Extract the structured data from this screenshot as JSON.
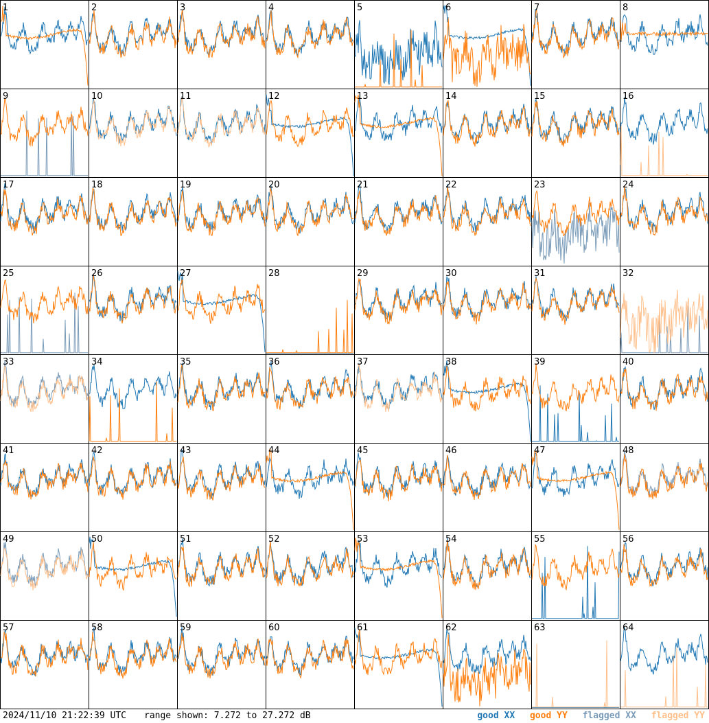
{
  "footer": {
    "timestamp": "2024/11/10 21:22:39 UTC",
    "range_text": "range shown: 7.272 to 27.272 dB"
  },
  "legend": {
    "good_xx": {
      "label": "good XX",
      "color": "#1f77b4"
    },
    "good_yy": {
      "label": "good YY",
      "color": "#ff7f0e"
    },
    "flagged_xx": {
      "label": "flagged XX",
      "color": "#7a9bb8"
    },
    "flagged_yy": {
      "label": "flagged YY",
      "color": "#ffbf8a"
    }
  },
  "chart_data": {
    "type": "line",
    "layout": "8x8 grid of small multiples",
    "ylim": [
      7.272,
      27.272
    ],
    "yunit": "dB",
    "panels": [
      {
        "id": "1",
        "xx": "good",
        "yy": "good",
        "yy_style": "rolloff"
      },
      {
        "id": "2",
        "xx": "good",
        "yy": "good",
        "yy_style": "normal"
      },
      {
        "id": "3",
        "xx": "good",
        "yy": "good",
        "yy_style": "normal"
      },
      {
        "id": "4",
        "xx": "good",
        "yy": "good",
        "yy_style": "normal"
      },
      {
        "id": "5",
        "xx": "good",
        "yy": "good",
        "xx_style": "noisy",
        "yy_style": "spikes"
      },
      {
        "id": "6",
        "xx": "good",
        "yy": "good",
        "xx_style": "rolloff",
        "yy_style": "noisy"
      },
      {
        "id": "7",
        "xx": "good",
        "yy": "good",
        "yy_style": "normal"
      },
      {
        "id": "8",
        "xx": "good",
        "yy": "good",
        "yy_style": "flat"
      },
      {
        "id": "9",
        "xx": "flagged",
        "yy": "good",
        "xx_style": "spikes"
      },
      {
        "id": "10",
        "xx": "good",
        "yy": "flagged"
      },
      {
        "id": "11",
        "xx": "good",
        "yy": "flagged"
      },
      {
        "id": "12",
        "xx": "good",
        "yy": "good",
        "xx_style": "rolloff"
      },
      {
        "id": "13",
        "xx": "good",
        "yy": "good",
        "yy_style": "rolloff"
      },
      {
        "id": "14",
        "xx": "good",
        "yy": "good"
      },
      {
        "id": "15",
        "xx": "good",
        "yy": "good"
      },
      {
        "id": "16",
        "xx": "good",
        "yy": "flagged",
        "yy_style": "spikes"
      },
      {
        "id": "17",
        "xx": "good",
        "yy": "good"
      },
      {
        "id": "18",
        "xx": "good",
        "yy": "good"
      },
      {
        "id": "19",
        "xx": "good",
        "yy": "good"
      },
      {
        "id": "20",
        "xx": "good",
        "yy": "good"
      },
      {
        "id": "21",
        "xx": "good",
        "yy": "good"
      },
      {
        "id": "22",
        "xx": "good",
        "yy": "good"
      },
      {
        "id": "23",
        "xx": "flagged",
        "yy": "good",
        "xx_style": "noisy"
      },
      {
        "id": "24",
        "xx": "good",
        "yy": "good"
      },
      {
        "id": "25",
        "xx": "flagged",
        "yy": "good",
        "xx_style": "spikes"
      },
      {
        "id": "26",
        "xx": "good",
        "yy": "good"
      },
      {
        "id": "27",
        "xx": "good",
        "yy": "good",
        "xx_style": "rolloff"
      },
      {
        "id": "28",
        "xx": "good",
        "yy": "good",
        "xx_style": "baseline",
        "yy_style": "spikes"
      },
      {
        "id": "29",
        "xx": "good",
        "yy": "good"
      },
      {
        "id": "30",
        "xx": "good",
        "yy": "good"
      },
      {
        "id": "31",
        "xx": "good",
        "yy": "good"
      },
      {
        "id": "32",
        "xx": "flagged",
        "yy": "flagged",
        "xx_style": "spikes",
        "yy_style": "noisy"
      },
      {
        "id": "33",
        "xx": "flagged",
        "yy": "flagged"
      },
      {
        "id": "34",
        "xx": "good",
        "yy": "good",
        "yy_style": "spikes"
      },
      {
        "id": "35",
        "xx": "good",
        "yy": "good"
      },
      {
        "id": "36",
        "xx": "good",
        "yy": "good"
      },
      {
        "id": "37",
        "xx": "good",
        "yy": "flagged"
      },
      {
        "id": "38",
        "xx": "good",
        "yy": "good",
        "xx_style": "rolloff"
      },
      {
        "id": "39",
        "xx": "good",
        "yy": "good",
        "xx_style": "spikes"
      },
      {
        "id": "40",
        "xx": "good",
        "yy": "good"
      },
      {
        "id": "41",
        "xx": "good",
        "yy": "good"
      },
      {
        "id": "42",
        "xx": "good",
        "yy": "good"
      },
      {
        "id": "43",
        "xx": "good",
        "yy": "good"
      },
      {
        "id": "44",
        "xx": "good",
        "yy": "good",
        "yy_style": "rolloff"
      },
      {
        "id": "45",
        "xx": "good",
        "yy": "good"
      },
      {
        "id": "46",
        "xx": "good",
        "yy": "good"
      },
      {
        "id": "47",
        "xx": "good",
        "yy": "good",
        "yy_style": "rolloff"
      },
      {
        "id": "48",
        "xx": "flagged",
        "yy": "good"
      },
      {
        "id": "49",
        "xx": "flagged",
        "yy": "flagged"
      },
      {
        "id": "50",
        "xx": "good",
        "yy": "good",
        "xx_style": "rolloff"
      },
      {
        "id": "51",
        "xx": "good",
        "yy": "good"
      },
      {
        "id": "52",
        "xx": "good",
        "yy": "good"
      },
      {
        "id": "53",
        "xx": "good",
        "yy": "good",
        "yy_style": "rolloff"
      },
      {
        "id": "54",
        "xx": "good",
        "yy": "good"
      },
      {
        "id": "55",
        "xx": "good",
        "yy": "good",
        "xx_style": "spikes"
      },
      {
        "id": "56",
        "xx": "good",
        "yy": "good"
      },
      {
        "id": "57",
        "xx": "good",
        "yy": "good"
      },
      {
        "id": "58",
        "xx": "good",
        "yy": "good"
      },
      {
        "id": "59",
        "xx": "good",
        "yy": "good"
      },
      {
        "id": "60",
        "xx": "good",
        "yy": "good"
      },
      {
        "id": "61",
        "xx": "good",
        "yy": "good",
        "xx_style": "rolloff"
      },
      {
        "id": "62",
        "xx": "good",
        "yy": "good",
        "yy_style": "noisy"
      },
      {
        "id": "63",
        "xx": "good",
        "yy": "flagged",
        "xx_style": "baseline",
        "yy_style": "spikes"
      },
      {
        "id": "64",
        "xx": "good",
        "yy": "flagged",
        "yy_style": "spikes"
      }
    ]
  }
}
